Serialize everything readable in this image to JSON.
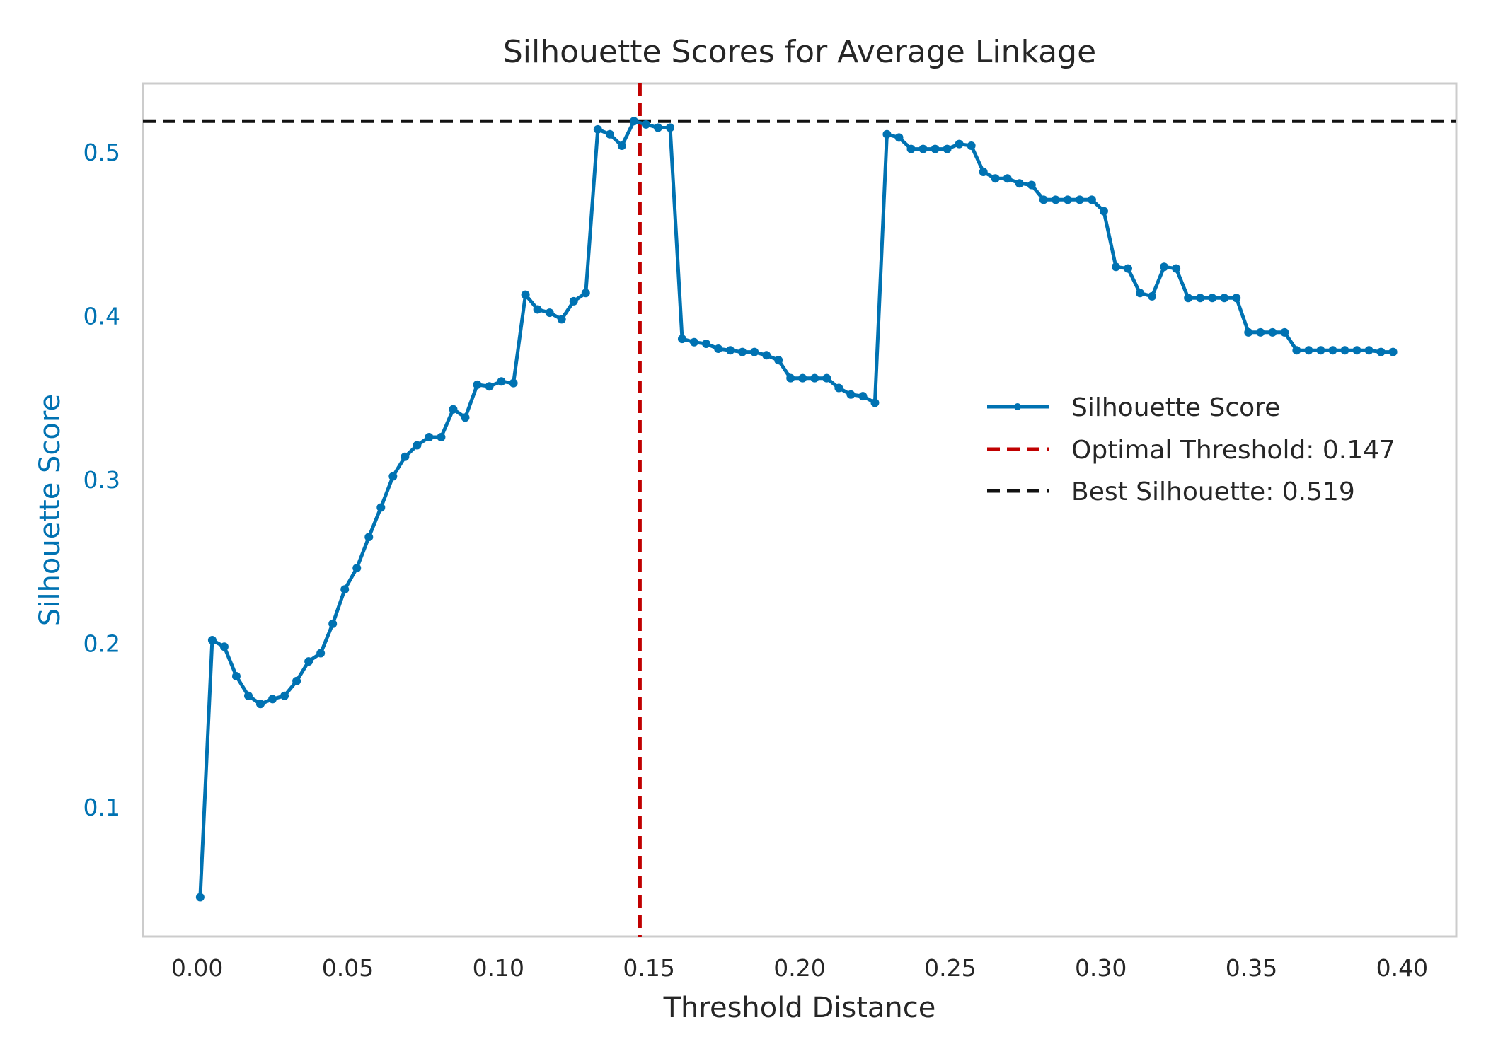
{
  "chart_data": {
    "type": "line",
    "title": "Silhouette Scores for Average Linkage",
    "xlabel": "Threshold Distance",
    "ylabel": "Silhouette Score",
    "xlim": [
      -0.018,
      0.418
    ],
    "ylim": [
      0.021,
      0.542
    ],
    "x_ticks": [
      0.0,
      0.05,
      0.1,
      0.15,
      0.2,
      0.25,
      0.3,
      0.35,
      0.4
    ],
    "x_tick_labels": [
      "0.00",
      "0.05",
      "0.10",
      "0.15",
      "0.20",
      "0.25",
      "0.30",
      "0.35",
      "0.40"
    ],
    "y_ticks": [
      0.1,
      0.2,
      0.3,
      0.4,
      0.5
    ],
    "y_tick_labels": [
      "0.1",
      "0.2",
      "0.3",
      "0.4",
      "0.5"
    ],
    "grid": false,
    "legend_position": "center-right",
    "colors": {
      "series": "#0072b2",
      "threshold": "#c00000",
      "best": "#111111",
      "frame": "#cccccc",
      "ylabel": "#0072b2",
      "text": "#262626"
    },
    "series": [
      {
        "name": "Silhouette Score",
        "x": [
          0.001,
          0.005,
          0.009,
          0.013,
          0.017,
          0.021,
          0.025,
          0.029,
          0.033,
          0.037,
          0.041,
          0.045,
          0.049,
          0.053,
          0.057,
          0.061,
          0.065,
          0.069,
          0.073,
          0.077,
          0.081,
          0.085,
          0.089,
          0.093,
          0.097,
          0.101,
          0.105,
          0.109,
          0.113,
          0.117,
          0.121,
          0.125,
          0.129,
          0.133,
          0.137,
          0.141,
          0.145,
          0.149,
          0.153,
          0.157,
          0.161,
          0.165,
          0.169,
          0.173,
          0.177,
          0.181,
          0.185,
          0.189,
          0.193,
          0.197,
          0.201,
          0.205,
          0.209,
          0.213,
          0.217,
          0.221,
          0.225,
          0.229,
          0.233,
          0.237,
          0.241,
          0.245,
          0.249,
          0.253,
          0.257,
          0.261,
          0.265,
          0.269,
          0.273,
          0.277,
          0.281,
          0.285,
          0.289,
          0.293,
          0.297,
          0.301,
          0.305,
          0.309,
          0.313,
          0.317,
          0.321,
          0.325,
          0.329,
          0.333,
          0.337,
          0.341,
          0.345,
          0.349,
          0.353,
          0.357,
          0.361,
          0.365,
          0.369,
          0.373,
          0.377,
          0.381,
          0.385,
          0.389,
          0.393,
          0.397
        ],
        "y": [
          0.045,
          0.202,
          0.198,
          0.18,
          0.168,
          0.163,
          0.166,
          0.168,
          0.177,
          0.189,
          0.194,
          0.212,
          0.233,
          0.246,
          0.265,
          0.283,
          0.302,
          0.314,
          0.321,
          0.326,
          0.326,
          0.343,
          0.338,
          0.358,
          0.357,
          0.36,
          0.359,
          0.413,
          0.404,
          0.402,
          0.398,
          0.409,
          0.414,
          0.514,
          0.511,
          0.504,
          0.519,
          0.517,
          0.515,
          0.515,
          0.386,
          0.384,
          0.383,
          0.38,
          0.379,
          0.378,
          0.378,
          0.376,
          0.373,
          0.362,
          0.362,
          0.362,
          0.362,
          0.356,
          0.352,
          0.351,
          0.347,
          0.511,
          0.509,
          0.502,
          0.502,
          0.502,
          0.502,
          0.505,
          0.504,
          0.488,
          0.484,
          0.484,
          0.481,
          0.48,
          0.471,
          0.471,
          0.471,
          0.471,
          0.471,
          0.464,
          0.43,
          0.429,
          0.414,
          0.412,
          0.43,
          0.429,
          0.411,
          0.411,
          0.411,
          0.411,
          0.411,
          0.39,
          0.39,
          0.39,
          0.39,
          0.379,
          0.379,
          0.379,
          0.379,
          0.379,
          0.379,
          0.379,
          0.378,
          0.378
        ]
      }
    ],
    "reference_lines": [
      {
        "orientation": "vertical",
        "value": 0.147,
        "label": "Optimal Threshold: 0.147",
        "style": "dashed",
        "color": "#c00000"
      },
      {
        "orientation": "horizontal",
        "value": 0.519,
        "label": "Best Silhouette: 0.519",
        "style": "dashed",
        "color": "#111111"
      }
    ]
  }
}
